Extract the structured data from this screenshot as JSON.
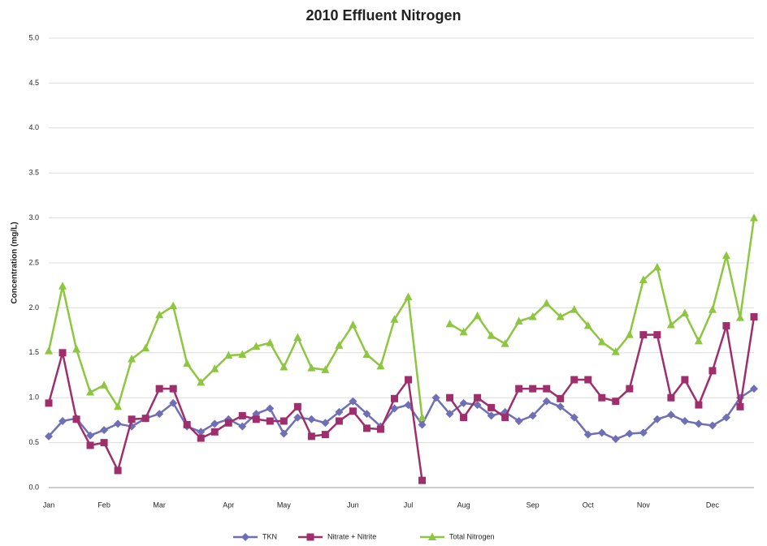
{
  "chart_data": {
    "type": "line",
    "title": "2010 Effluent Nitrogen",
    "y_label": "Concentration (mg/L)",
    "categories": [
      "Jan",
      null,
      null,
      null,
      "Feb",
      null,
      null,
      null,
      "Mar",
      null,
      null,
      null,
      null,
      "Apr",
      null,
      null,
      null,
      "May",
      null,
      null,
      null,
      null,
      "Jun",
      null,
      null,
      null,
      "Jul",
      null,
      null,
      null,
      "Aug",
      null,
      null,
      null,
      null,
      "Sep",
      null,
      null,
      null,
      "Oct",
      null,
      null,
      null,
      "Nov",
      null,
      null,
      null,
      null,
      "Dec",
      null,
      null,
      null
    ],
    "series": [
      {
        "name": "TKN",
        "color": "#6f6fb5",
        "marker": "diamond",
        "values": [
          0.57,
          0.74,
          0.77,
          0.58,
          0.64,
          0.71,
          0.68,
          0.77,
          0.82,
          0.94,
          0.68,
          0.62,
          0.71,
          0.76,
          0.68,
          0.82,
          0.88,
          0.6,
          0.78,
          0.76,
          0.72,
          0.84,
          0.96,
          0.82,
          0.68,
          0.88,
          0.92,
          0.7,
          1.0,
          0.82,
          0.94,
          0.92,
          0.8,
          0.84,
          0.74,
          0.8,
          0.96,
          0.9,
          0.78,
          0.59,
          0.61,
          0.54,
          0.6,
          0.61,
          0.76,
          0.81,
          0.74,
          0.71,
          0.69,
          0.78,
          1.0,
          1.1
        ]
      },
      {
        "name": "Nitrate + Nitrite",
        "color": "#9e2f6c",
        "marker": "square",
        "values": [
          0.94,
          1.5,
          0.76,
          0.47,
          0.5,
          0.19,
          0.76,
          0.77,
          1.1,
          1.1,
          0.7,
          0.55,
          0.62,
          0.72,
          0.8,
          0.76,
          0.74,
          0.74,
          0.9,
          0.57,
          0.59,
          0.74,
          0.85,
          0.66,
          0.65,
          0.99,
          1.2,
          0.08,
          null,
          1.0,
          0.78,
          1.0,
          0.89,
          0.78,
          1.1,
          1.1,
          1.1,
          0.99,
          1.2,
          1.2,
          1.0,
          0.96,
          1.1,
          1.7,
          1.7,
          1.0,
          1.2,
          0.92,
          1.3,
          1.8,
          0.9,
          1.9
        ]
      },
      {
        "name": "Total Nitrogen",
        "color": "#8dc63f",
        "marker": "triangle",
        "values": [
          1.52,
          2.24,
          1.54,
          1.06,
          1.14,
          0.9,
          1.43,
          1.55,
          1.92,
          2.02,
          1.38,
          1.17,
          1.32,
          1.47,
          1.48,
          1.57,
          1.61,
          1.34,
          1.67,
          1.33,
          1.31,
          1.58,
          1.81,
          1.48,
          1.35,
          1.87,
          2.12,
          0.78,
          null,
          1.82,
          1.73,
          1.91,
          1.69,
          1.6,
          1.85,
          1.9,
          2.05,
          1.9,
          1.98,
          1.8,
          1.62,
          1.51,
          1.7,
          2.31,
          2.45,
          1.81,
          1.94,
          1.63,
          1.98,
          2.58,
          1.89,
          3.0
        ]
      }
    ],
    "ylim": [
      0,
      5
    ],
    "yticks": [
      {
        "value": 0,
        "label": "0.0"
      },
      {
        "value": 0.5,
        "label": "0.5"
      },
      {
        "value": 1,
        "label": "1.0"
      },
      {
        "value": 1.5,
        "label": "1.5"
      },
      {
        "value": 2,
        "label": "2.0"
      },
      {
        "value": 2.5,
        "label": "2.5"
      },
      {
        "value": 3,
        "label": "3.0"
      },
      {
        "value": 3.5,
        "label": "3.5"
      },
      {
        "value": 4,
        "label": "4.0"
      },
      {
        "value": 4.5,
        "label": "4.5"
      },
      {
        "value": 5,
        "label": "5.0"
      }
    ],
    "grid": true,
    "legend": "bottom"
  }
}
